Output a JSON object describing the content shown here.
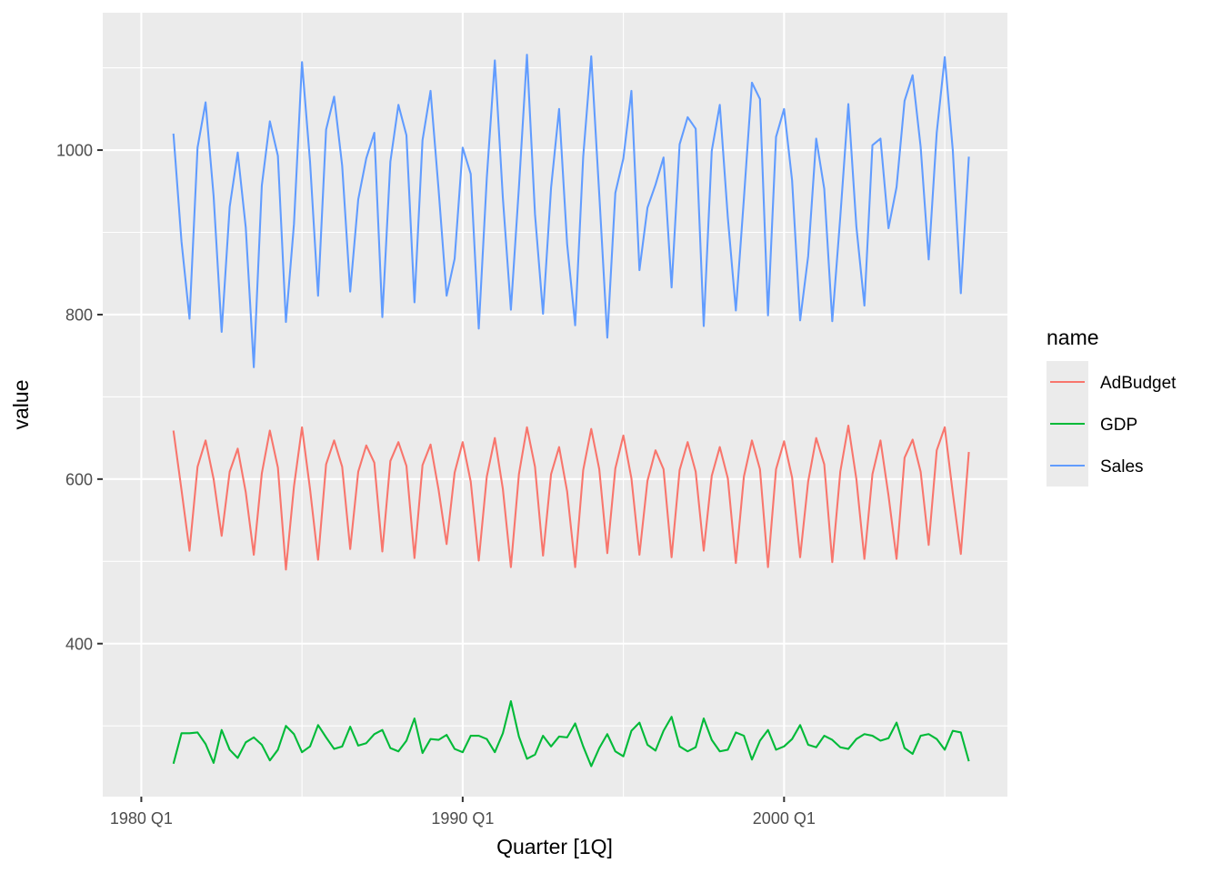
{
  "chart_data": {
    "type": "line",
    "xlabel": "Quarter [1Q]",
    "ylabel": "value",
    "x_start": "1981 Q1",
    "x_ticks": [
      {
        "label": "1980 Q1",
        "value": 1980.0
      },
      {
        "label": "1990 Q1",
        "value": 1990.0
      },
      {
        "label": "2000 Q1",
        "value": 2000.0
      }
    ],
    "y_ticks": [
      400,
      600,
      800,
      1000
    ],
    "xlim": [
      1978.8,
      2006.95
    ],
    "ylim": [
      214,
      1167
    ],
    "grid": true,
    "legend": {
      "title": "name",
      "position": "right"
    },
    "series": [
      {
        "name": "AdBudget",
        "color": "#F8766D",
        "values": [
          659,
          587,
          513,
          615,
          647,
          600,
          531,
          609,
          637,
          584,
          508,
          607,
          659,
          614,
          490,
          591,
          663,
          588,
          502,
          618,
          647,
          615,
          515,
          609,
          641,
          620,
          512,
          622,
          645,
          616,
          504,
          617,
          642,
          587,
          521,
          608,
          645,
          597,
          501,
          603,
          650,
          588,
          493,
          606,
          663,
          615,
          507,
          606,
          639,
          585,
          493,
          611,
          661,
          612,
          510,
          613,
          653,
          601,
          508,
          598,
          635,
          612,
          505,
          611,
          645,
          609,
          513,
          604,
          639,
          601,
          498,
          603,
          647,
          612,
          493,
          612,
          646,
          602,
          505,
          597,
          650,
          618,
          499,
          609,
          665,
          600,
          503,
          606,
          647,
          580,
          503,
          626,
          648,
          609,
          520,
          635,
          663,
          583,
          509,
          633
        ]
      },
      {
        "name": "GDP",
        "color": "#00BA38",
        "values": [
          254,
          291,
          291,
          292,
          278,
          255,
          295,
          271,
          261,
          280,
          286,
          277,
          258,
          271,
          300,
          290,
          268,
          275,
          301,
          286,
          272,
          275,
          299,
          276,
          279,
          290,
          295,
          273,
          269,
          282,
          309,
          267,
          284,
          283,
          289,
          272,
          268,
          288,
          288,
          284,
          268,
          291,
          330,
          287,
          260,
          265,
          288,
          275,
          287,
          286,
          303,
          275,
          251,
          273,
          290,
          269,
          263,
          294,
          304,
          277,
          270,
          294,
          311,
          275,
          269,
          274,
          309,
          283,
          269,
          271,
          292,
          288,
          259,
          282,
          295,
          271,
          275,
          284,
          301,
          277,
          274,
          288,
          283,
          274,
          272,
          284,
          290,
          288,
          282,
          285,
          304,
          273,
          266,
          288,
          290,
          284,
          271,
          294,
          292,
          257
        ]
      },
      {
        "name": "Sales",
        "color": "#619CFF",
        "values": [
          1020,
          889,
          795,
          1003,
          1058,
          944,
          779,
          931,
          997,
          906,
          736,
          957,
          1035,
          993,
          791,
          910,
          1107,
          986,
          823,
          1025,
          1065,
          981,
          828,
          940,
          990,
          1021,
          797,
          986,
          1055,
          1018,
          815,
          1012,
          1072,
          952,
          823,
          868,
          1003,
          971,
          783,
          966,
          1109,
          942,
          806,
          955,
          1116,
          922,
          801,
          954,
          1050,
          886,
          787,
          992,
          1114,
          946,
          772,
          948,
          990,
          1072,
          854,
          930,
          958,
          991,
          833,
          1007,
          1040,
          1026,
          786,
          999,
          1055,
          918,
          805,
          941,
          1082,
          1062,
          799,
          1016,
          1050,
          963,
          793,
          871,
          1014,
          953,
          792,
          919,
          1056,
          907,
          811,
          1006,
          1014,
          905,
          955,
          1060,
          1091,
          1004,
          867,
          1021,
          1113,
          1000,
          826,
          992
        ]
      }
    ]
  }
}
